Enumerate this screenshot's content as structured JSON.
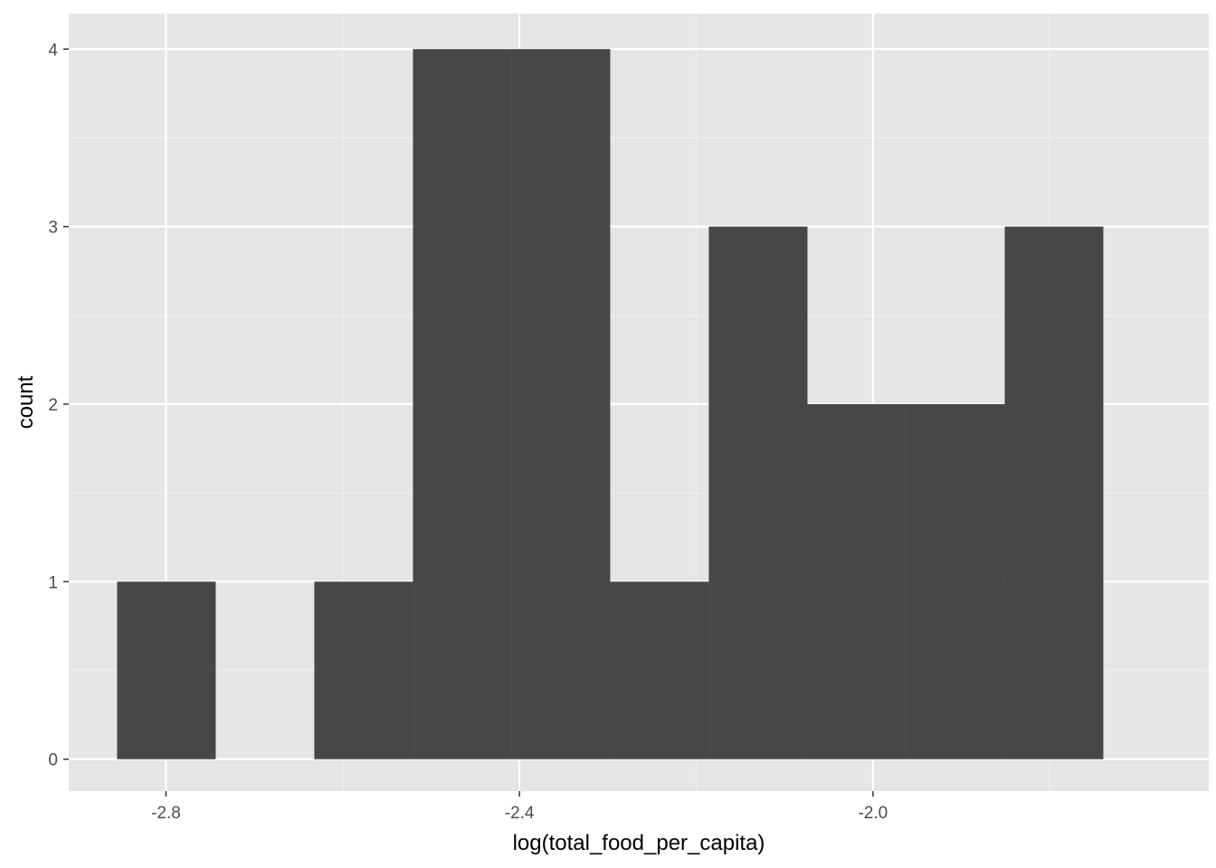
{
  "chart_data": {
    "type": "histogram",
    "xlabel": "log(total_food_per_capita)",
    "ylabel": "count",
    "xlim": [
      -2.91,
      -1.62
    ],
    "ylim": [
      -0.18,
      4.2
    ],
    "x_ticks": [
      {
        "value": -2.8,
        "label": "-2.8"
      },
      {
        "value": -2.4,
        "label": "-2.4"
      },
      {
        "value": -2.0,
        "label": "-2.0"
      }
    ],
    "x_minor_ticks": [
      -2.6,
      -2.2,
      -1.8
    ],
    "y_ticks": [
      {
        "value": 0,
        "label": "0"
      },
      {
        "value": 1,
        "label": "1"
      },
      {
        "value": 2,
        "label": "2"
      },
      {
        "value": 3,
        "label": "3"
      },
      {
        "value": 4,
        "label": "4"
      }
    ],
    "y_minor_ticks": [
      0.5,
      1.5,
      2.5,
      3.5
    ],
    "bins": [
      {
        "x0": -2.8553,
        "x1": -2.7437,
        "count": 1
      },
      {
        "x0": -2.7437,
        "x1": -2.6321,
        "count": 0
      },
      {
        "x0": -2.6321,
        "x1": -2.5205,
        "count": 1
      },
      {
        "x0": -2.5205,
        "x1": -2.4089,
        "count": 4
      },
      {
        "x0": -2.4089,
        "x1": -2.2973,
        "count": 4
      },
      {
        "x0": -2.2973,
        "x1": -2.1857,
        "count": 1
      },
      {
        "x0": -2.1857,
        "x1": -2.0741,
        "count": 3
      },
      {
        "x0": -2.0741,
        "x1": -1.9625,
        "count": 2
      },
      {
        "x0": -1.9625,
        "x1": -1.8509,
        "count": 2
      },
      {
        "x0": -1.8509,
        "x1": -1.7393,
        "count": 3
      }
    ],
    "grid": true,
    "colors": {
      "panel_background": "#e5e5e5",
      "grid_major": "#ffffff",
      "grid_minor": "#f2f2f2",
      "bar_fill": "#474747",
      "tick_mark": "#333333"
    }
  }
}
